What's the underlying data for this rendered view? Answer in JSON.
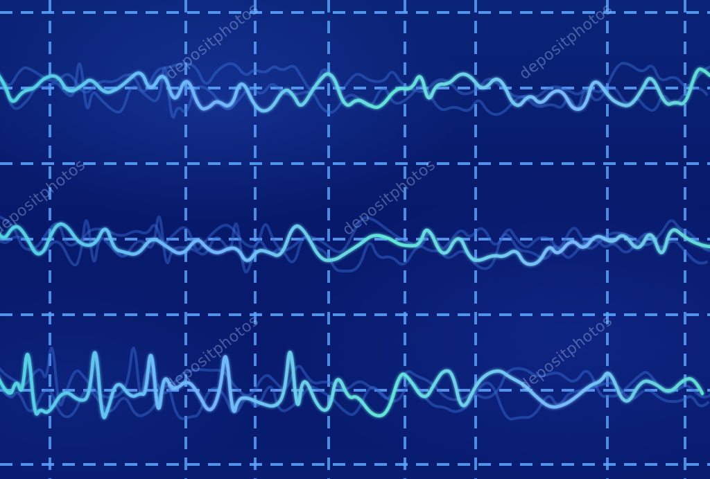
{
  "scene": {
    "description_colors": {
      "background": "#0a2478",
      "grid": "#5ea8ff",
      "trace": "#6fb0ff",
      "trace_highlight": "#5ff0d8",
      "ghost_trace": "#3a6fd6"
    }
  },
  "watermark": {
    "text": "depositphotos"
  }
}
